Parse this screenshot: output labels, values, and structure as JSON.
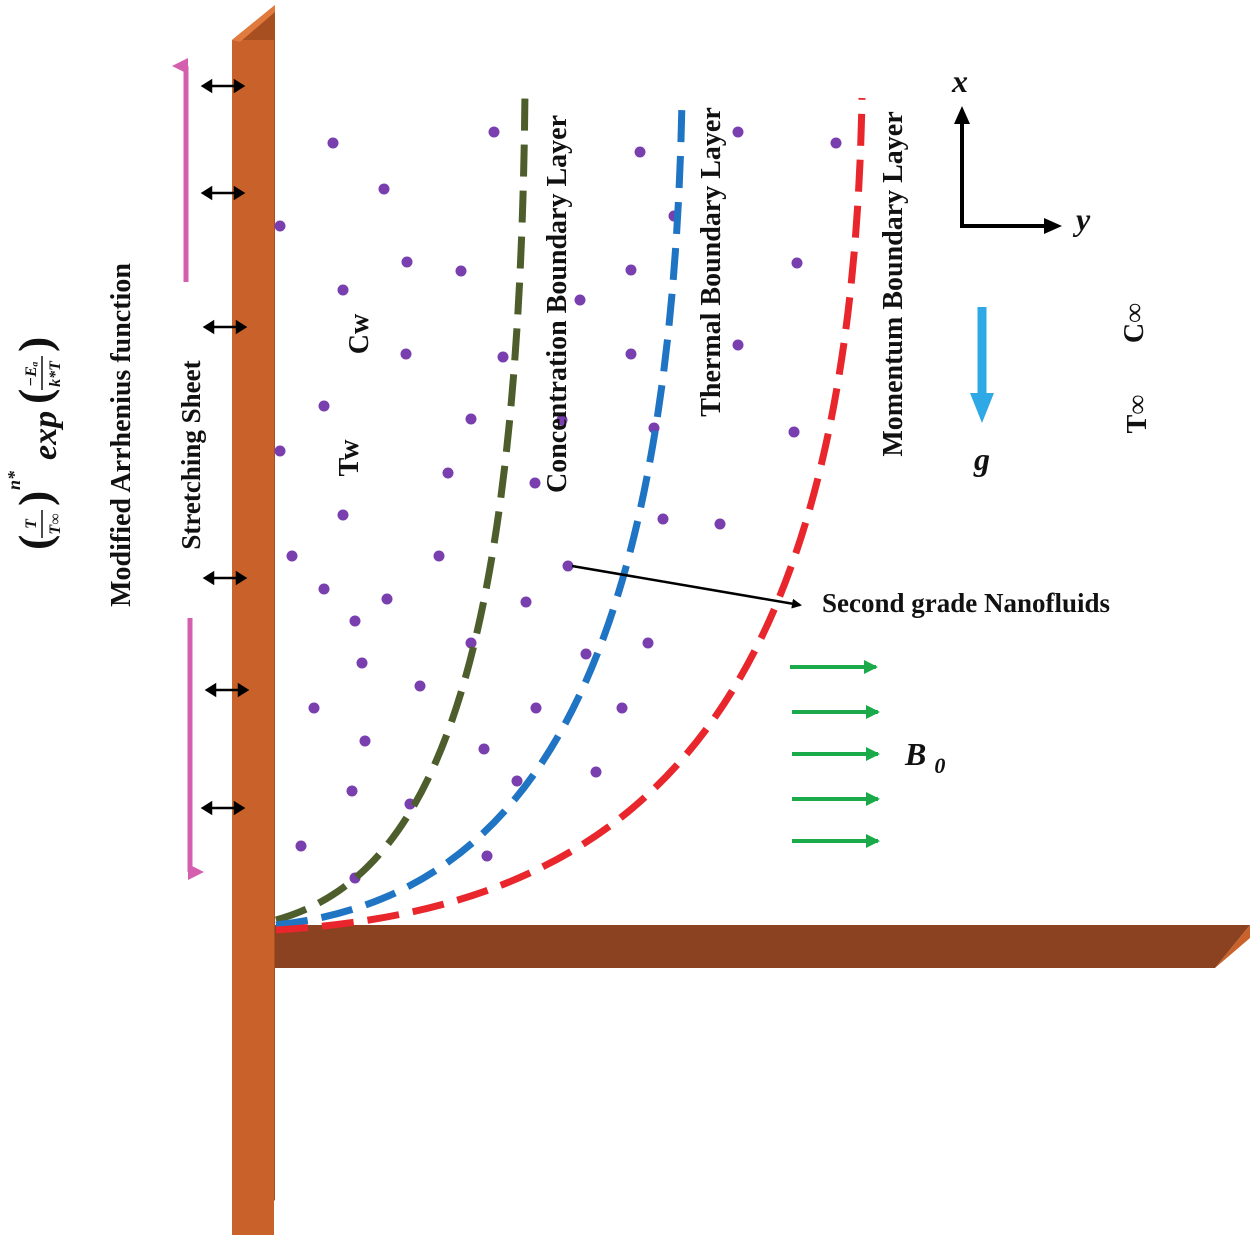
{
  "labels": {
    "arrhenius_title": "Modified Arrhenius function",
    "arrhenius_formula": {
      "t": "T",
      "t_inf": "T∞",
      "exponent": "n*",
      "exp": "exp",
      "ea": "−Eₐ",
      "kt": "k*T"
    },
    "stretching_sheet": "Stretching Sheet",
    "wall_concentration": "Cw",
    "wall_temperature": "Tw",
    "concentration_layer": "Concentration Boundary Layer",
    "thermal_layer": "Thermal Boundary Layer",
    "momentum_layer": "Momentum Boundary Layer",
    "axis_x": "x",
    "axis_y": "y",
    "gravity": "g",
    "ambient_concentration": "C∞",
    "ambient_temperature": "T∞",
    "fluid": "Second grade Nanofluids",
    "magnetic_field": "B0"
  },
  "colors": {
    "sheet_front": "#c8622a",
    "sheet_dark": "#8a4220",
    "concentration_curve": "#4d5e2c",
    "thermal_curve": "#1f74c4",
    "momentum_curve": "#e8262c",
    "particle": "#7a3fae",
    "stretch_arrow": "#d35fae",
    "gravity_arrow": "#2fa8e6",
    "magnetic_arrow": "#1aaa4a"
  }
}
